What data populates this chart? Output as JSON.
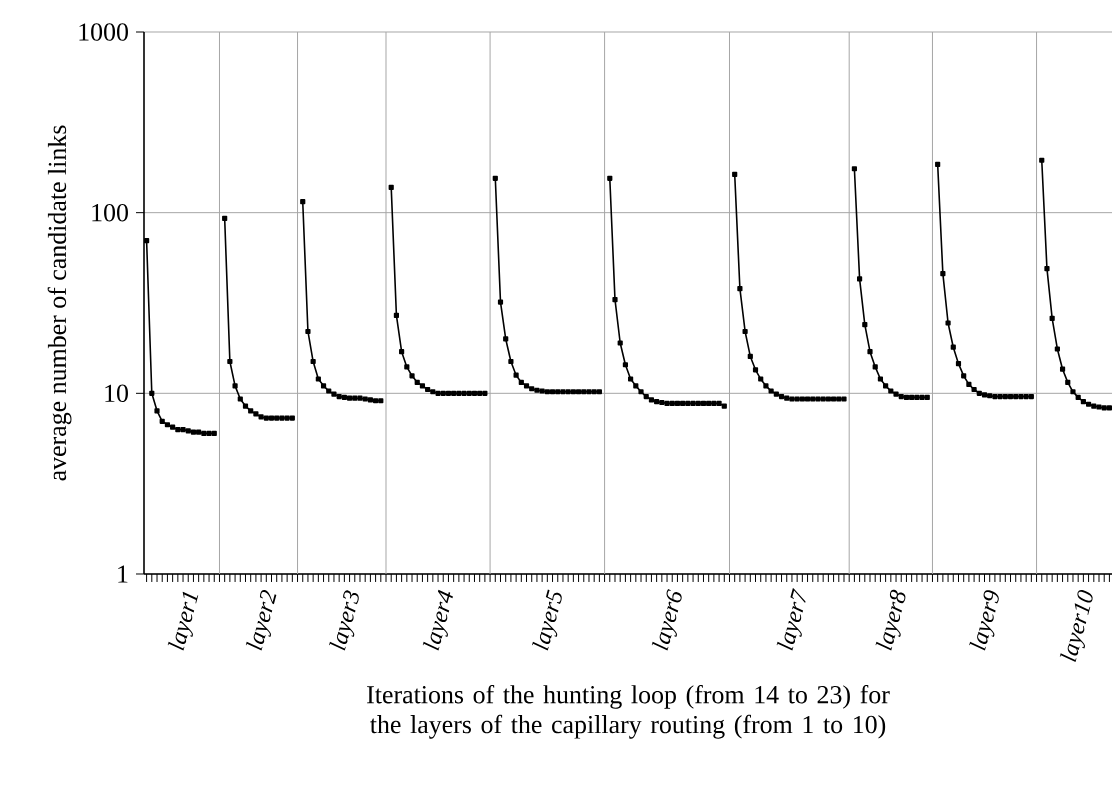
{
  "chart_data": {
    "type": "line",
    "xlabel": "Iterations of the hunting loop (from 14 to 23) for the layers of the capillary routing (from 1 to 10)",
    "ylabel": "average number of candidate links",
    "log": "y",
    "ylim": [
      1,
      1000
    ],
    "yticks": [
      1,
      10,
      100,
      1000
    ],
    "grid": true,
    "marker": "square",
    "line_style": "solid",
    "categories": [
      null,
      null,
      null,
      null,
      null,
      null,
      null,
      "layer1",
      null,
      null,
      null,
      null,
      null,
      null,
      null,
      null,
      null,
      null,
      null,
      null,
      null,
      null,
      "layer2",
      null,
      null,
      null,
      null,
      null,
      null,
      null,
      null,
      null,
      null,
      null,
      null,
      null,
      null,
      null,
      "layer3",
      null,
      null,
      null,
      null,
      null,
      null,
      null,
      null,
      null,
      null,
      null,
      null,
      null,
      null,
      null,
      null,
      null,
      "layer4",
      null,
      null,
      null,
      null,
      null,
      null,
      null,
      null,
      null,
      null,
      null,
      null,
      null,
      null,
      null,
      null,
      null,
      null,
      null,
      null,
      "layer5",
      null,
      null,
      null,
      null,
      null,
      null,
      null,
      null,
      null,
      null,
      null,
      null,
      null,
      null,
      null,
      null,
      null,
      null,
      null,
      null,
      null,
      null,
      "layer6",
      null,
      null,
      null,
      null,
      null,
      null,
      null,
      null,
      null,
      null,
      null,
      null,
      null,
      null,
      null,
      null,
      null,
      null,
      null,
      null,
      null,
      null,
      null,
      "layer7",
      null,
      null,
      null,
      null,
      null,
      null,
      null,
      null,
      null,
      null,
      null,
      null,
      null,
      null,
      null,
      null,
      null,
      null,
      "layer8",
      null,
      null,
      null,
      null,
      null,
      null,
      null,
      null,
      null,
      null,
      null,
      null,
      null,
      null,
      null,
      null,
      null,
      "layer9",
      null,
      null,
      null,
      null,
      null,
      null,
      null,
      null,
      null,
      null,
      null,
      null,
      null,
      null,
      null,
      null,
      null,
      "layer10",
      null,
      null,
      null,
      null,
      null,
      null
    ],
    "series": [
      {
        "color": "#000000",
        "values": [
          70,
          10,
          8,
          7,
          6.7,
          6.5,
          6.3,
          6.3,
          6.2,
          6.1,
          6.1,
          6,
          6,
          6,
          null,
          93,
          15,
          11,
          9.3,
          8.5,
          8,
          7.7,
          7.4,
          7.3,
          7.3,
          7.3,
          7.3,
          7.3,
          7.3,
          null,
          115,
          22,
          15,
          12,
          11,
          10.3,
          9.9,
          9.6,
          9.5,
          9.4,
          9.4,
          9.4,
          9.3,
          9.2,
          9.1,
          9.1,
          null,
          138,
          27,
          17,
          14,
          12.5,
          11.5,
          11,
          10.5,
          10.2,
          10,
          10,
          10,
          10,
          10,
          10,
          10,
          10,
          10,
          10,
          null,
          155,
          32,
          20,
          15,
          12.6,
          11.5,
          11,
          10.6,
          10.4,
          10.3,
          10.2,
          10.2,
          10.2,
          10.2,
          10.2,
          10.2,
          10.2,
          10.2,
          10.2,
          10.2,
          10.2,
          null,
          155,
          33,
          19,
          14.4,
          12,
          11,
          10.2,
          9.6,
          9.2,
          9,
          8.9,
          8.8,
          8.8,
          8.8,
          8.8,
          8.8,
          8.8,
          8.8,
          8.8,
          8.8,
          8.8,
          8.8,
          8.5,
          null,
          163,
          38,
          22,
          16,
          13.5,
          12,
          11,
          10.3,
          9.9,
          9.6,
          9.4,
          9.3,
          9.3,
          9.3,
          9.3,
          9.3,
          9.3,
          9.3,
          9.3,
          9.3,
          9.3,
          9.3,
          null,
          175,
          43,
          24,
          17,
          14,
          12,
          11,
          10.3,
          9.9,
          9.6,
          9.5,
          9.5,
          9.5,
          9.5,
          9.5,
          null,
          185,
          46,
          24.5,
          18,
          14.6,
          12.5,
          11.2,
          10.5,
          10,
          9.8,
          9.7,
          9.6,
          9.6,
          9.6,
          9.6,
          9.6,
          9.6,
          9.6,
          9.6,
          null,
          195,
          49,
          26,
          17.6,
          13.6,
          11.5,
          10.2,
          9.5,
          9,
          8.7,
          8.5,
          8.4,
          8.3,
          8.3
        ]
      }
    ]
  }
}
